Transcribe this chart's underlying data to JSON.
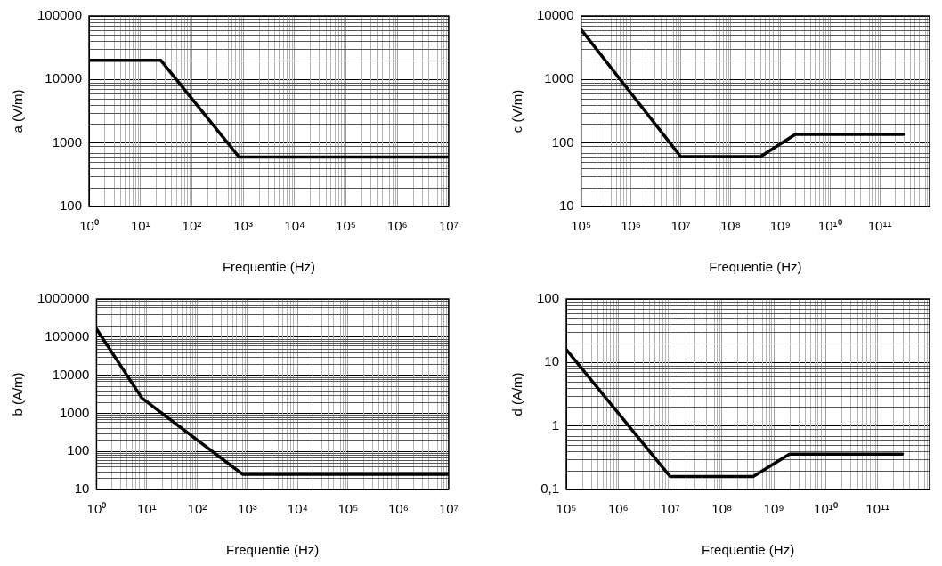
{
  "chart_data": [
    {
      "type": "line",
      "xlabel": "Frequentie (Hz)",
      "ylabel": "a (V/m)",
      "log": "xy",
      "grid": true,
      "marker": "none",
      "line_style": "solid",
      "legend": false,
      "series": [
        {
          "color": "#000000",
          "x": [
            1,
            25,
            833,
            10000000
          ],
          "values": [
            20000,
            20000,
            600,
            600
          ]
        }
      ],
      "xlim": [
        1,
        10000000
      ],
      "xticks": [
        {
          "value": 1,
          "label": "10⁰"
        },
        {
          "value": 10,
          "label": "10¹"
        },
        {
          "value": 100,
          "label": "10²"
        },
        {
          "value": 1000,
          "label": "10³"
        },
        {
          "value": 10000,
          "label": "10⁴"
        },
        {
          "value": 100000,
          "label": "10⁵"
        },
        {
          "value": 1000000,
          "label": "10⁶"
        },
        {
          "value": 10000000,
          "label": "10⁷"
        }
      ],
      "ylim": [
        100,
        100000
      ],
      "yticks": [
        100,
        1000,
        10000,
        100000
      ]
    },
    {
      "type": "line",
      "xlabel": "Frequentie (Hz)",
      "ylabel": "c (V/m)",
      "log": "xy",
      "grid": true,
      "marker": "none",
      "line_style": "solid",
      "legend": false,
      "series": [
        {
          "color": "#000000",
          "x": [
            100000,
            10000000,
            400000000,
            2000000000,
            300000000000
          ],
          "values": [
            6100,
            61,
            61,
            137,
            137
          ]
        }
      ],
      "xlim": [
        100000,
        1000000000000
      ],
      "xticks": [
        {
          "value": 100000,
          "label": "10⁵"
        },
        {
          "value": 1000000,
          "label": "10⁶"
        },
        {
          "value": 10000000,
          "label": "10⁷"
        },
        {
          "value": 100000000,
          "label": "10⁸"
        },
        {
          "value": 1000000000,
          "label": "10⁹"
        },
        {
          "value": 10000000000,
          "label": "10¹⁰"
        },
        {
          "value": 100000000000,
          "label": "10¹¹"
        },
        {
          "value": 1000000000000,
          "label": null
        }
      ],
      "ylim": [
        10,
        10000
      ],
      "yticks": [
        10,
        100,
        1000,
        10000
      ]
    },
    {
      "type": "line",
      "xlabel": "Frequentie (Hz)",
      "ylabel": "b (A/m)",
      "log": "xy",
      "grid": true,
      "marker": "none",
      "line_style": "solid",
      "legend": false,
      "series": [
        {
          "color": "#000000",
          "x": [
            1,
            8,
            800,
            10000000
          ],
          "values": [
            163000,
            2500,
            25,
            25
          ]
        }
      ],
      "xlim": [
        1,
        10000000
      ],
      "xticks": [
        {
          "value": 1,
          "label": "10⁰"
        },
        {
          "value": 10,
          "label": "10¹"
        },
        {
          "value": 100,
          "label": "10²"
        },
        {
          "value": 1000,
          "label": "10³"
        },
        {
          "value": 10000,
          "label": "10⁴"
        },
        {
          "value": 100000,
          "label": "10⁵"
        },
        {
          "value": 1000000,
          "label": "10⁶"
        },
        {
          "value": 10000000,
          "label": "10⁷"
        }
      ],
      "ylim": [
        10,
        1000000
      ],
      "yticks": [
        10,
        100,
        1000,
        10000,
        100000,
        1000000
      ]
    },
    {
      "type": "line",
      "xlabel": "Frequentie (Hz)",
      "ylabel": "d (A/m)",
      "log": "xy",
      "grid": true,
      "marker": "none",
      "line_style": "solid",
      "legend": false,
      "series": [
        {
          "color": "#000000",
          "x": [
            100000,
            10000000,
            400000000,
            2000000000,
            300000000000
          ],
          "values": [
            16,
            0.16,
            0.16,
            0.36,
            0.36
          ]
        }
      ],
      "xlim": [
        100000,
        1000000000000
      ],
      "xticks": [
        {
          "value": 100000,
          "label": "10⁵"
        },
        {
          "value": 1000000,
          "label": "10⁶"
        },
        {
          "value": 10000000,
          "label": "10⁷"
        },
        {
          "value": 100000000,
          "label": "10⁸"
        },
        {
          "value": 1000000000,
          "label": "10⁹"
        },
        {
          "value": 10000000000,
          "label": "10¹⁰"
        },
        {
          "value": 100000000000,
          "label": "10¹¹"
        },
        {
          "value": 1000000000000,
          "label": null
        }
      ],
      "ylim": [
        0.1,
        100
      ],
      "yticks": [
        {
          "value": 0.1,
          "label": "0,1"
        },
        1,
        10,
        100
      ]
    }
  ]
}
